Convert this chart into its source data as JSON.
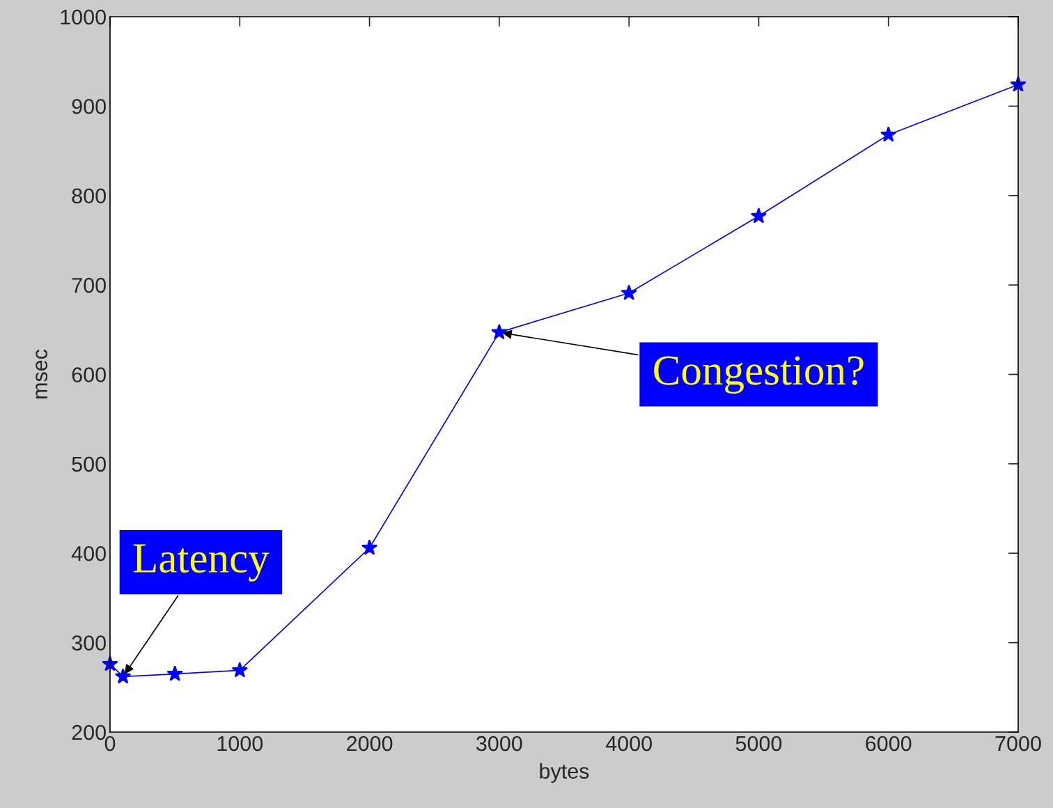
{
  "chart_data": {
    "type": "line",
    "xlabel": "bytes",
    "ylabel": "msec",
    "x": [
      0,
      100,
      500,
      1000,
      2000,
      3000,
      4000,
      5000,
      6000,
      7000
    ],
    "series": [
      {
        "color": "#0000ff",
        "values": [
          276,
          262,
          265,
          269,
          406,
          647,
          691,
          777,
          868,
          924
        ]
      }
    ],
    "xlim": [
      0,
      7000
    ],
    "xticks": [
      0,
      1000,
      2000,
      3000,
      4000,
      5000,
      6000,
      7000
    ],
    "ylim": [
      200,
      1000
    ],
    "yticks": [
      200,
      300,
      400,
      500,
      600,
      700,
      800,
      900,
      1000
    ],
    "marker": "star",
    "line_style": "solid",
    "grid": false,
    "legend": false,
    "annotations": [
      {
        "text": "Latency",
        "x": 100,
        "y": 262
      },
      {
        "text": "Congestion?",
        "x": 3000,
        "y": 647
      }
    ]
  }
}
